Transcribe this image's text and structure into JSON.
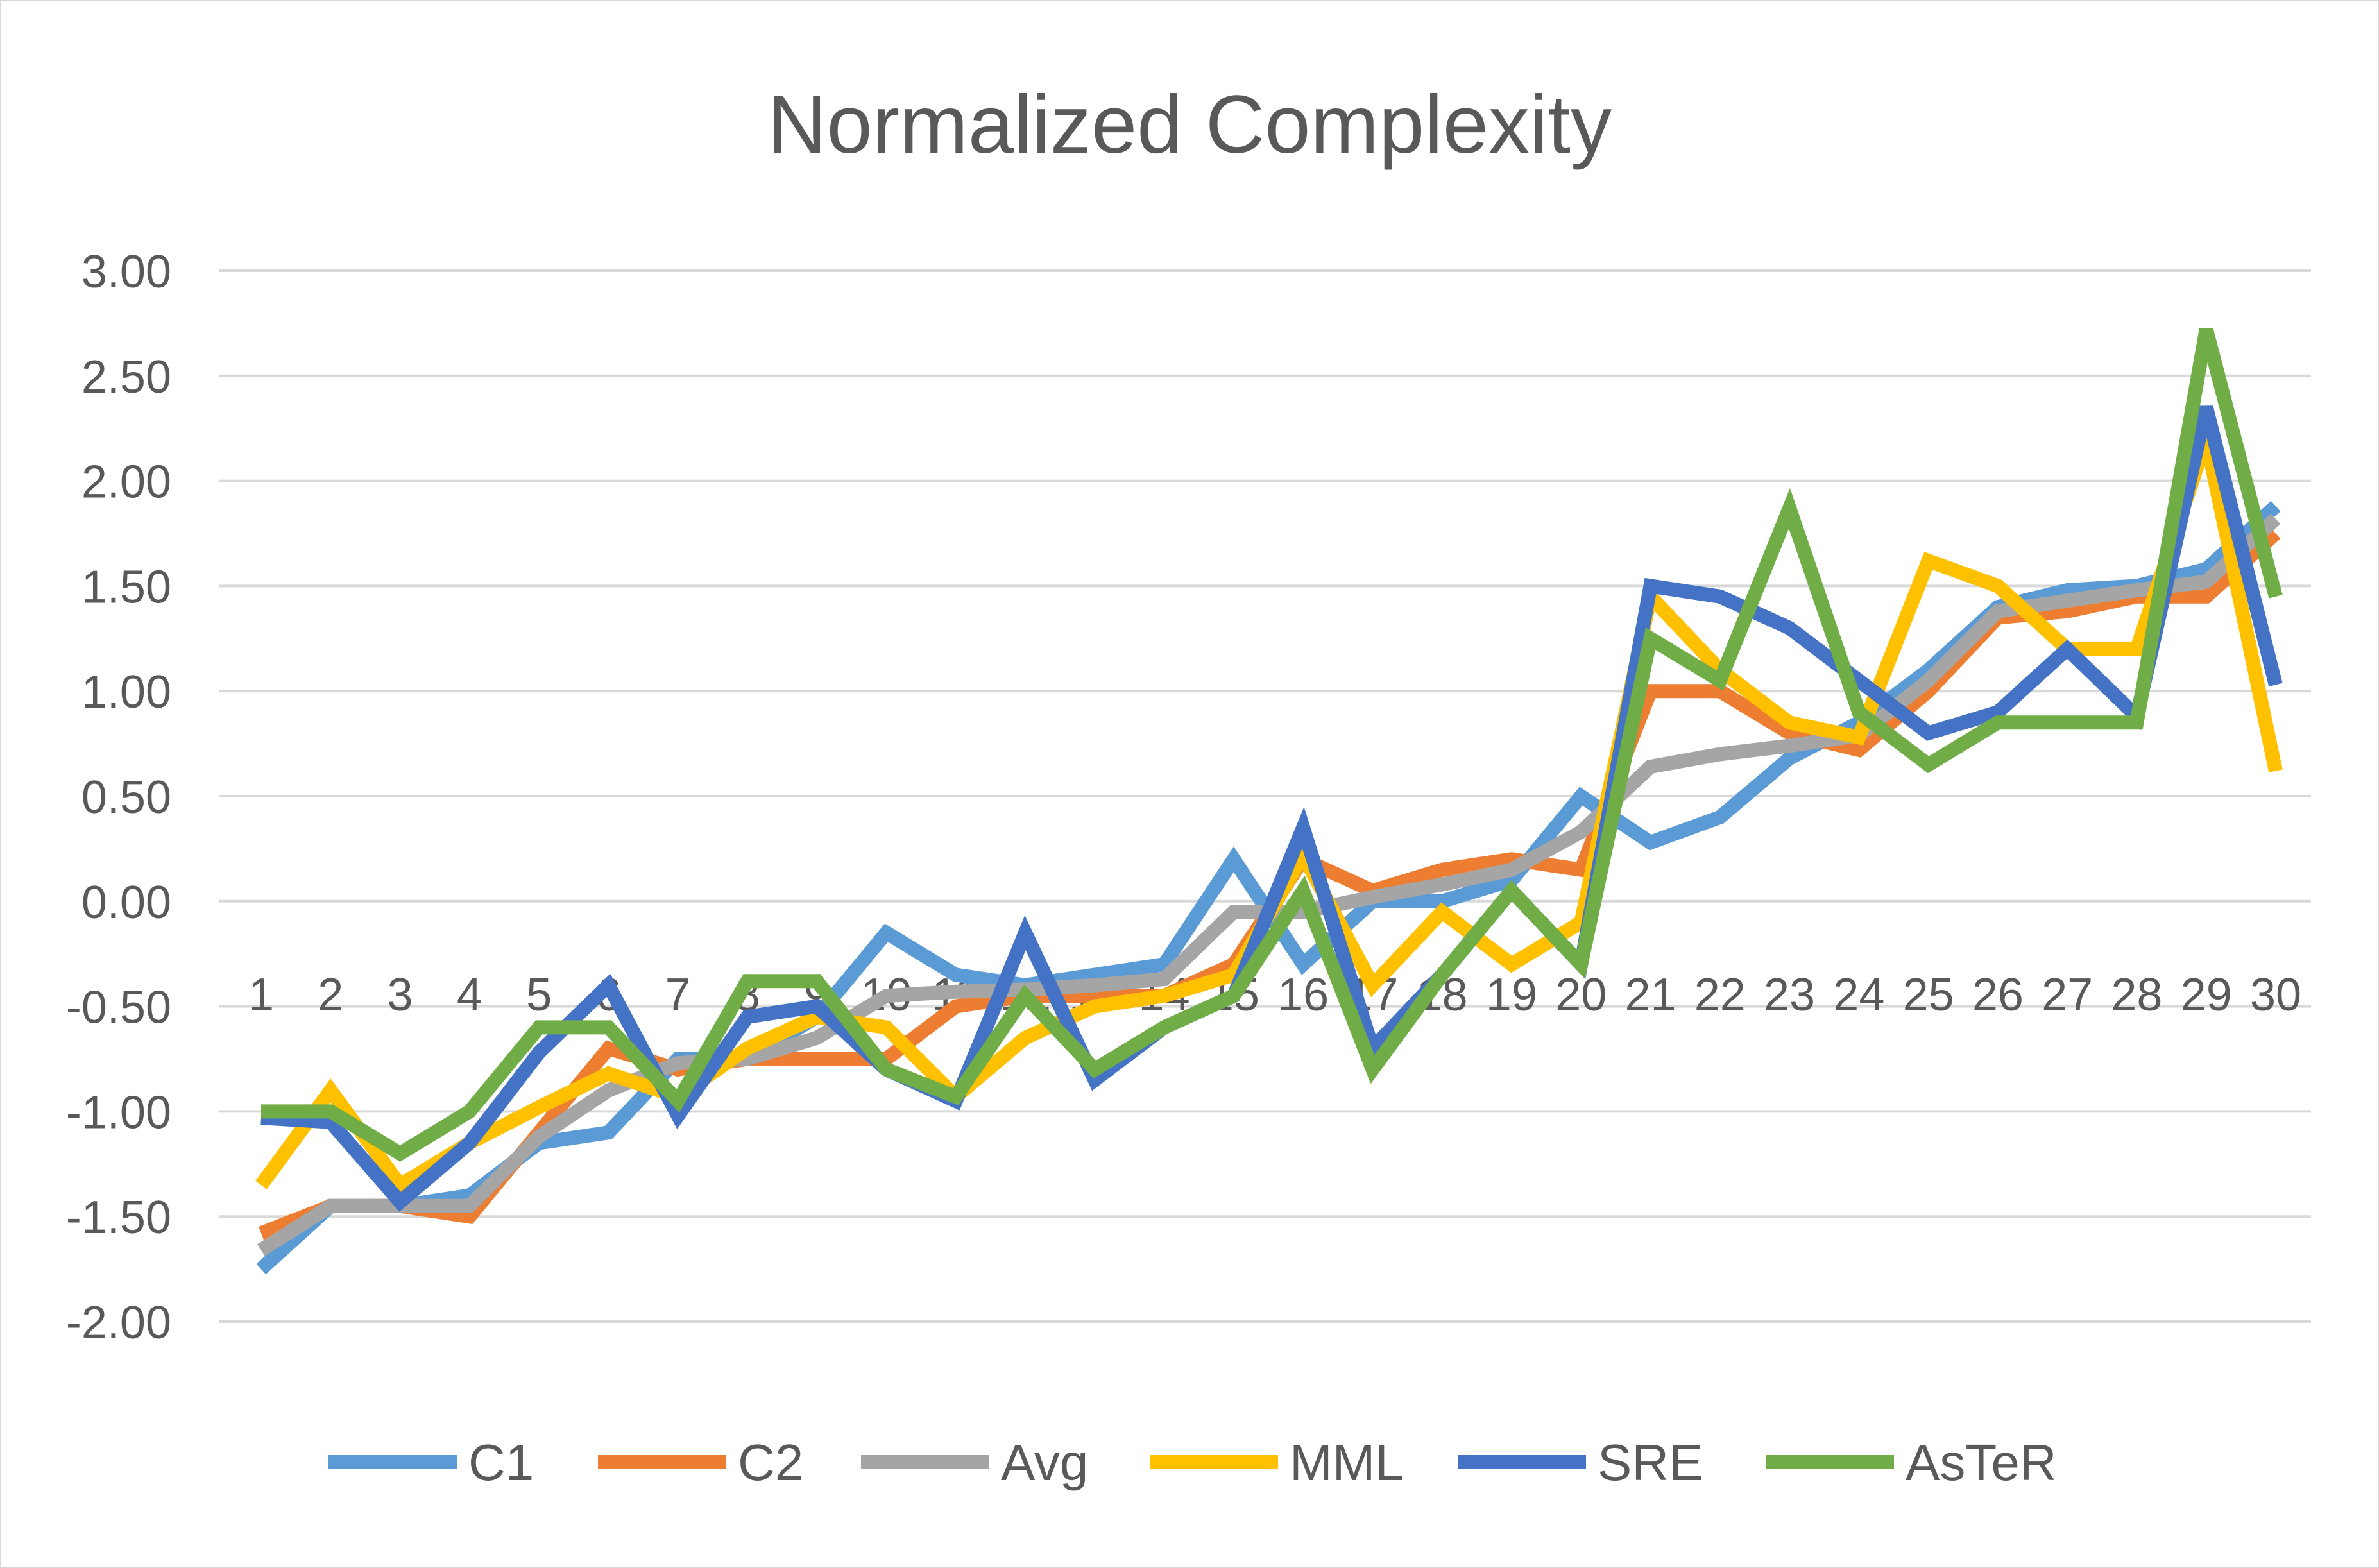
{
  "chart_data": {
    "type": "line",
    "title": "Normalized Complexity",
    "xlabel": "",
    "ylabel": "",
    "categories": [
      "1",
      "2",
      "3",
      "4",
      "5",
      "6",
      "7",
      "8",
      "9",
      "10",
      "11",
      "12",
      "13",
      "14",
      "15",
      "16",
      "17",
      "18",
      "19",
      "20",
      "21",
      "22",
      "23",
      "24",
      "25",
      "26",
      "27",
      "28",
      "29",
      "30"
    ],
    "yticks": [
      "3.00",
      "2.50",
      "2.00",
      "1.50",
      "1.00",
      "0.50",
      "0.00",
      "-0.50",
      "-1.00",
      "-1.50",
      "-2.00"
    ],
    "ylim": [
      -2.0,
      3.0
    ],
    "grid": true,
    "legend_position": "bottom",
    "series": [
      {
        "name": "C1",
        "color": "#5b9bd5",
        "values": [
          -1.75,
          -1.45,
          -1.45,
          -1.4,
          -1.15,
          -1.1,
          -0.75,
          -0.75,
          -0.55,
          -0.15,
          -0.35,
          -0.4,
          -0.35,
          -0.3,
          0.2,
          -0.3,
          0.0,
          0.0,
          0.1,
          0.5,
          0.28,
          0.4,
          0.68,
          0.85,
          1.1,
          1.4,
          1.48,
          1.5,
          1.58,
          1.88
        ]
      },
      {
        "name": "C2",
        "color": "#ed7d31",
        "values": [
          -1.58,
          -1.45,
          -1.45,
          -1.5,
          -1.1,
          -0.7,
          -0.8,
          -0.75,
          -0.75,
          -0.75,
          -0.5,
          -0.45,
          -0.45,
          -0.45,
          -0.3,
          0.2,
          0.05,
          0.15,
          0.2,
          0.15,
          1.0,
          1.0,
          0.8,
          0.72,
          1.0,
          1.35,
          1.38,
          1.45,
          1.45,
          1.75
        ]
      },
      {
        "name": "Avg",
        "color": "#a5a5a5",
        "values": [
          -1.66,
          -1.45,
          -1.45,
          -1.45,
          -1.12,
          -0.9,
          -0.77,
          -0.75,
          -0.65,
          -0.45,
          -0.43,
          -0.42,
          -0.4,
          -0.37,
          -0.05,
          -0.05,
          0.02,
          0.08,
          0.15,
          0.33,
          0.64,
          0.7,
          0.74,
          0.79,
          1.05,
          1.38,
          1.43,
          1.48,
          1.52,
          1.82
        ]
      },
      {
        "name": "MML",
        "color": "#ffc000",
        "values": [
          -1.35,
          -0.9,
          -1.35,
          -1.15,
          -0.98,
          -0.82,
          -0.93,
          -0.7,
          -0.55,
          -0.6,
          -0.93,
          -0.65,
          -0.5,
          -0.45,
          -0.35,
          0.22,
          -0.4,
          -0.05,
          -0.3,
          -0.1,
          1.45,
          1.1,
          0.85,
          0.78,
          1.62,
          1.5,
          1.2,
          1.2,
          2.2,
          0.62
        ]
      },
      {
        "name": "SRE",
        "color": "#4472c4",
        "values": [
          -1.03,
          -1.05,
          -1.43,
          -1.15,
          -0.72,
          -0.4,
          -1.02,
          -0.55,
          -0.5,
          -0.8,
          -0.95,
          -0.15,
          -0.85,
          -0.6,
          -0.45,
          0.35,
          -0.7,
          -0.35,
          0.05,
          -0.3,
          1.5,
          1.45,
          1.3,
          1.05,
          0.8,
          0.9,
          1.2,
          0.88,
          2.35,
          1.03
        ]
      },
      {
        "name": "AsTeR",
        "color": "#70ad47",
        "values": [
          -1.0,
          -1.0,
          -1.2,
          -1.0,
          -0.6,
          -0.6,
          -0.95,
          -0.38,
          -0.38,
          -0.8,
          -0.93,
          -0.45,
          -0.8,
          -0.6,
          -0.45,
          0.05,
          -0.8,
          -0.35,
          0.05,
          -0.3,
          1.25,
          1.05,
          1.87,
          0.9,
          0.65,
          0.85,
          0.85,
          0.85,
          2.72,
          1.45
        ]
      }
    ]
  }
}
